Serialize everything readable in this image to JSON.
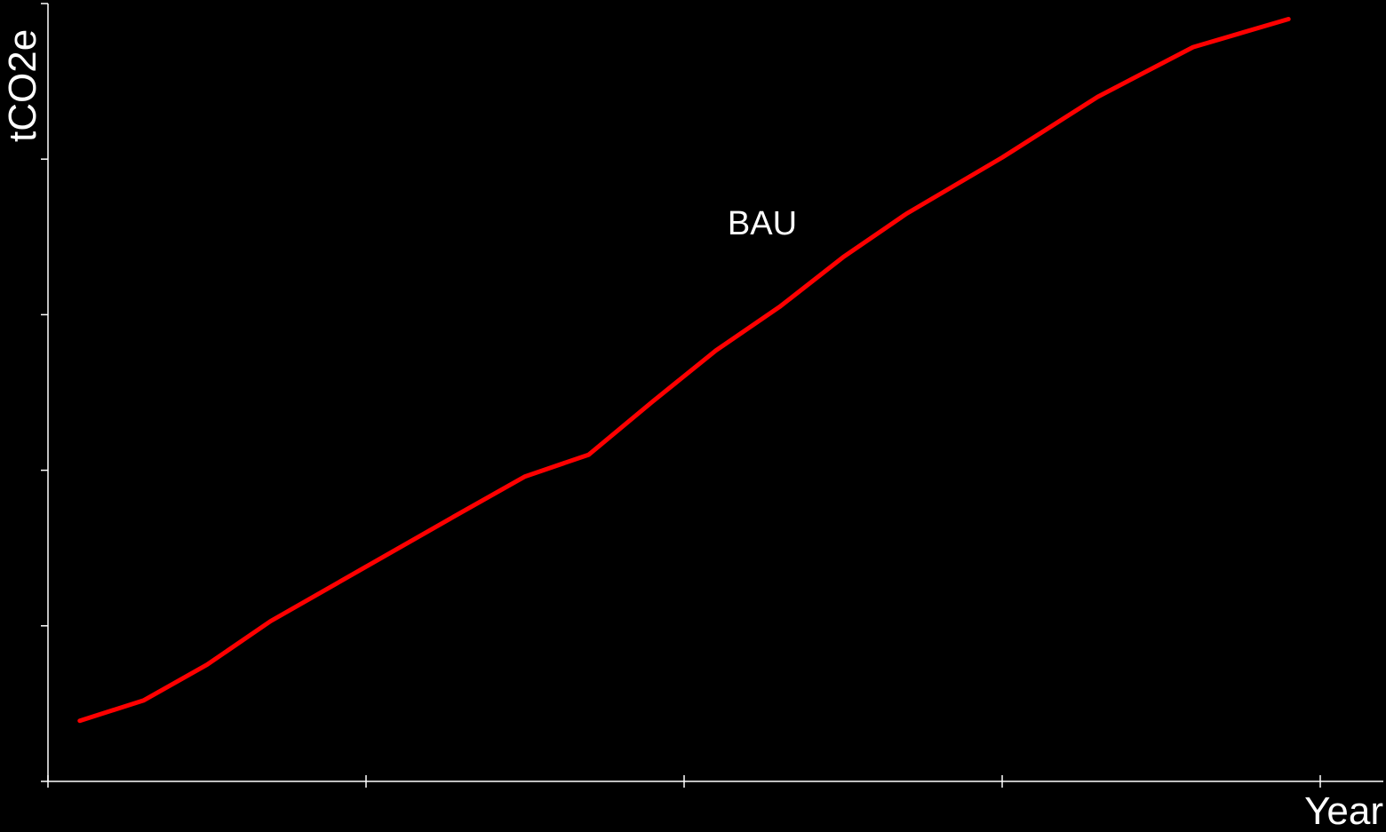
{
  "chart_data": {
    "type": "line",
    "ylabel": "tCO2e",
    "xlabel": "Year",
    "xlim": [
      0,
      20
    ],
    "ylim": [
      0,
      25
    ],
    "x_ticks": [
      0,
      5,
      10,
      15,
      20
    ],
    "y_ticks": [
      0,
      5,
      10,
      15,
      20,
      25
    ],
    "grid": false,
    "colors": {
      "background": "#000000",
      "axes": "#ffffff",
      "series": "#ff0000"
    },
    "series": [
      {
        "name": "BAU",
        "x": [
          0.5,
          1.5,
          2.5,
          3.5,
          5,
          6.5,
          7.5,
          8.5,
          9.5,
          10.5,
          11.5,
          12.5,
          13.5,
          15,
          16.5,
          18,
          19.5
        ],
        "y": [
          1.95,
          2.6,
          3.75,
          5.15,
          6.9,
          8.65,
          9.8,
          10.5,
          12.2,
          13.85,
          15.25,
          16.85,
          18.25,
          20.05,
          22.0,
          23.6,
          24.5
        ]
      }
    ]
  }
}
